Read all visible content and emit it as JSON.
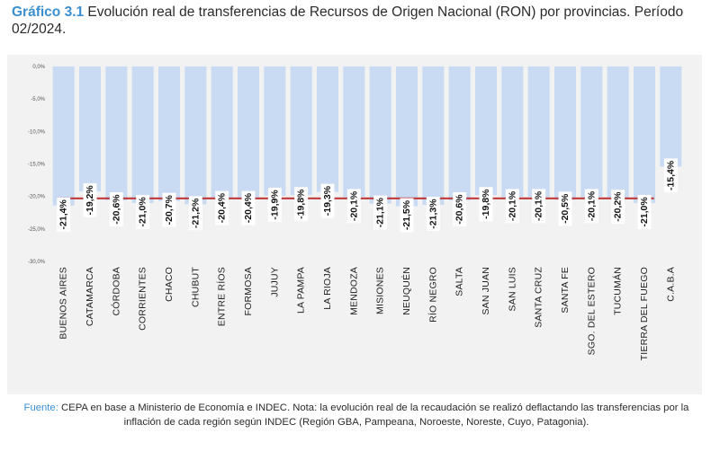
{
  "title": {
    "lead": "Gráfico 3.1",
    "text": " Evolución real de transferencias de Recursos de Origen Nacional (RON) por provincias. Período 02/2024."
  },
  "source": {
    "lead": "Fuente:",
    "text": " CEPA en base a Ministerio de Economía e INDEC. Nota: la evolución real de la recaudación se realizó deflactando las transferencias por la inflación de cada región según INDEC (Región GBA, Pampeana, Noroeste, Noreste, Cuyo, Patagonia)."
  },
  "colors": {
    "bar": "#c9daf3",
    "line": "#c0393b",
    "label_bg": "#ffffff",
    "frame": "#f2f2f2"
  },
  "chart_data": {
    "type": "bar",
    "categories": [
      "BUENOS AIRES",
      "CATAMARCA",
      "CÓRDOBA",
      "CORRIENTES",
      "CHACO",
      "CHUBUT",
      "ENTRE RÍOS",
      "FORMOSA",
      "JUJUY",
      "LA PAMPA",
      "LA RIOJA",
      "MENDOZA",
      "MISIONES",
      "NEUQUÉN",
      "RÍO NEGRO",
      "SALTA",
      "SAN JUAN",
      "SAN LUIS",
      "SANTA CRUZ",
      "SANTA FE",
      "SGO. DEL ESTERO",
      "TUCUMÁN",
      "TIERRA DEL FUEGO",
      "C.A.B.A"
    ],
    "values": [
      -21.4,
      -19.2,
      -20.6,
      -21.0,
      -20.7,
      -21.2,
      -20.4,
      -20.4,
      -19.9,
      -19.8,
      -19.3,
      -20.1,
      -21.1,
      -21.5,
      -21.3,
      -20.6,
      -19.8,
      -20.1,
      -20.1,
      -20.5,
      -20.1,
      -20.2,
      -21.0,
      -15.4
    ],
    "data_labels": [
      "-21,4%",
      "-19,2%",
      "-20,6%",
      "-21,0%",
      "-20,7%",
      "-21,2%",
      "-20,4%",
      "-20,4%",
      "-19,9%",
      "-19,8%",
      "-19,3%",
      "-20,1%",
      "-21,1%",
      "-21,5%",
      "-21,3%",
      "-20,6%",
      "-19,8%",
      "-20,1%",
      "-20,1%",
      "-20,5%",
      "-20,1%",
      "-20,2%",
      "-21,0%",
      "-15,4%"
    ],
    "reference_line": -20.3,
    "ylim": [
      -30,
      0
    ],
    "yticks": [
      0,
      -5,
      -10,
      -15,
      -20,
      -25,
      -30
    ],
    "ytick_labels": [
      "0,0%",
      "-5,0%",
      "-10,0%",
      "-15,0%",
      "-20,0%",
      "-25,0%",
      "-30,0%"
    ],
    "grid": false,
    "legend": "none"
  }
}
